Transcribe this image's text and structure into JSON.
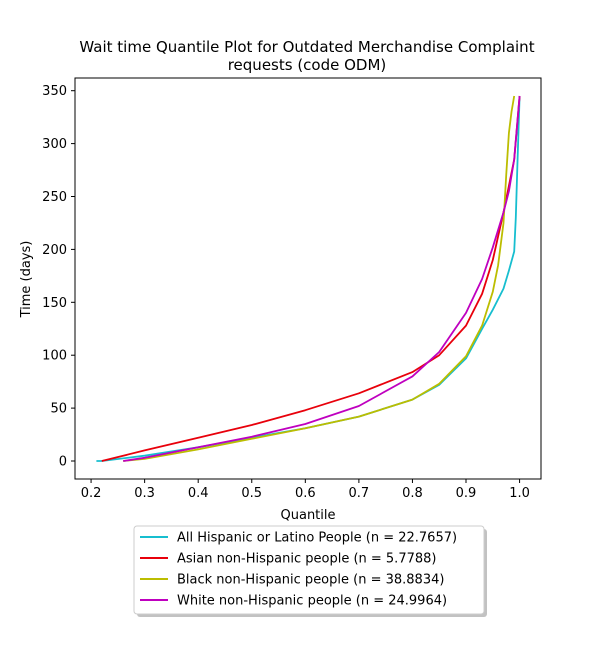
{
  "chart_data": {
    "type": "line",
    "title_line1": "Wait time Quantile Plot for Outdated Merchandise Complaint",
    "title_line2": "requests (code ODM)",
    "xlabel": "Quantile",
    "ylabel": "Time (days)",
    "xlim": [
      0.17,
      1.04
    ],
    "ylim": [
      -17,
      362
    ],
    "x_ticks": [
      0.2,
      0.3,
      0.4,
      0.5,
      0.6,
      0.7,
      0.8,
      0.9,
      1.0
    ],
    "x_tick_labels": [
      "0.2",
      "0.3",
      "0.4",
      "0.5",
      "0.6",
      "0.7",
      "0.8",
      "0.9",
      "1.0"
    ],
    "y_ticks": [
      0,
      50,
      100,
      150,
      200,
      250,
      300,
      350
    ],
    "y_tick_labels": [
      "0",
      "50",
      "100",
      "150",
      "200",
      "250",
      "300",
      "350"
    ],
    "grid": false,
    "legend_placement": "below plot",
    "series": [
      {
        "name": "All Hispanic or Latino People (n = 22.7657)",
        "color": "#17becf",
        "x": [
          0.21,
          0.22,
          0.3,
          0.4,
          0.5,
          0.6,
          0.7,
          0.8,
          0.85,
          0.9,
          0.93,
          0.95,
          0.97,
          0.98,
          0.99,
          0.993,
          0.996,
          1.0
        ],
        "y": [
          0,
          0,
          5,
          13,
          22,
          31,
          42,
          58,
          72,
          97,
          125,
          143,
          163,
          180,
          198,
          230,
          280,
          345
        ]
      },
      {
        "name": "Asian non-Hispanic people (n = 5.7788)",
        "color": "#e8000b",
        "x": [
          0.22,
          0.3,
          0.4,
          0.5,
          0.6,
          0.7,
          0.8,
          0.85,
          0.9,
          0.93,
          0.95,
          0.97,
          0.98,
          0.99,
          1.0
        ],
        "y": [
          0,
          10,
          22,
          34,
          48,
          64,
          84,
          100,
          128,
          158,
          190,
          235,
          260,
          285,
          345
        ]
      },
      {
        "name": "Black non-Hispanic people (n = 38.8834)",
        "color": "#bcbd00",
        "x": [
          0.26,
          0.3,
          0.4,
          0.5,
          0.6,
          0.7,
          0.8,
          0.85,
          0.9,
          0.93,
          0.95,
          0.96,
          0.97,
          0.975,
          0.98,
          0.985,
          0.99
        ],
        "y": [
          0,
          2,
          11,
          21,
          31,
          42,
          58,
          73,
          99,
          128,
          160,
          185,
          225,
          270,
          310,
          330,
          345
        ]
      },
      {
        "name": "White non-Hispanic people (n = 24.9964)",
        "color": "#bf00bf",
        "x": [
          0.26,
          0.3,
          0.4,
          0.5,
          0.6,
          0.7,
          0.8,
          0.85,
          0.9,
          0.93,
          0.95,
          0.97,
          0.98,
          0.99,
          1.0
        ],
        "y": [
          0,
          3,
          13,
          23,
          35,
          52,
          80,
          103,
          140,
          172,
          202,
          235,
          255,
          285,
          345
        ]
      }
    ]
  }
}
